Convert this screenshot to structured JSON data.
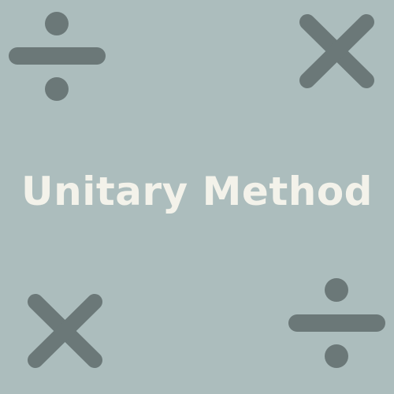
{
  "background_color": "#acbdbd",
  "title": {
    "text": "Unitary Method",
    "color": "#f3f2ea"
  },
  "icons": {
    "color": "#6b7878",
    "top_left": "division-icon",
    "top_right": "multiplication-icon",
    "bottom_left": "multiplication-icon",
    "bottom_right": "division-icon"
  }
}
